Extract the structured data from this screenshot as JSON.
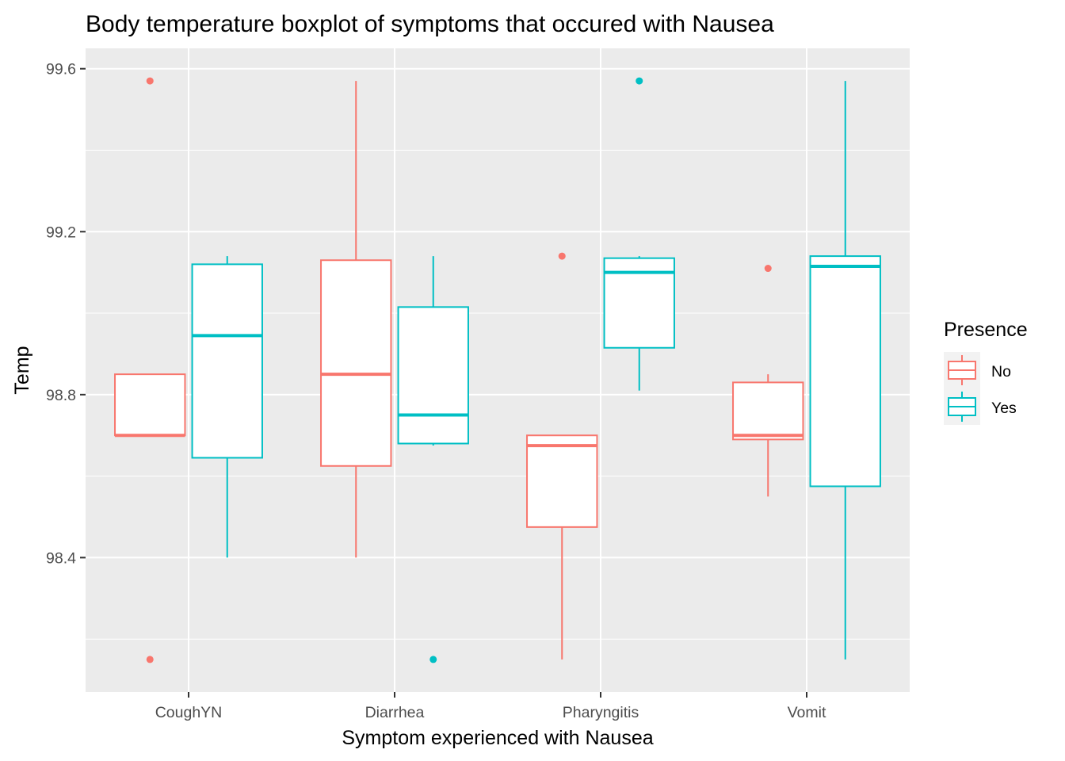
{
  "chart_data": {
    "type": "boxplot",
    "title": "Body temperature boxplot of symptoms that occured with Nausea",
    "xlabel": "Symptom experienced with Nausea",
    "ylabel": "Temp",
    "categories": [
      "CoughYN",
      "Diarrhea",
      "Pharyngitis",
      "Vomit"
    ],
    "ylim": [
      98.07,
      99.65
    ],
    "yticks": [
      98.4,
      98.8,
      99.2,
      99.6
    ],
    "ytick_labels": [
      "98.4",
      "98.8",
      "99.2",
      "99.6"
    ],
    "grid": true,
    "legend": {
      "title": "Presence",
      "position": "right",
      "entries": [
        {
          "label": "No",
          "color": "#f8766d"
        },
        {
          "label": "Yes",
          "color": "#00bfc4"
        }
      ]
    },
    "series": [
      {
        "name": "No",
        "color": "#f8766d",
        "boxes": [
          {
            "category": "CoughYN",
            "whisker_low": 98.7,
            "q1": 98.7,
            "median": 98.7,
            "q3": 98.85,
            "whisker_high": 98.85,
            "outliers": [
              99.57,
              98.15
            ]
          },
          {
            "category": "Diarrhea",
            "whisker_low": 98.4,
            "q1": 98.625,
            "median": 98.85,
            "q3": 99.13,
            "whisker_high": 99.57,
            "outliers": []
          },
          {
            "category": "Pharyngitis",
            "whisker_low": 98.15,
            "q1": 98.475,
            "median": 98.675,
            "q3": 98.7,
            "whisker_high": 98.7,
            "outliers": [
              99.14
            ]
          },
          {
            "category": "Vomit",
            "whisker_low": 98.55,
            "q1": 98.69,
            "median": 98.7,
            "q3": 98.83,
            "whisker_high": 98.85,
            "outliers": [
              99.11
            ]
          }
        ]
      },
      {
        "name": "Yes",
        "color": "#00bfc4",
        "boxes": [
          {
            "category": "CoughYN",
            "whisker_low": 98.4,
            "q1": 98.645,
            "median": 98.945,
            "q3": 99.12,
            "whisker_high": 99.14,
            "outliers": []
          },
          {
            "category": "Diarrhea",
            "whisker_low": 98.675,
            "q1": 98.68,
            "median": 98.75,
            "q3": 99.015,
            "whisker_high": 99.14,
            "outliers": [
              98.15
            ]
          },
          {
            "category": "Pharyngitis",
            "whisker_low": 98.81,
            "q1": 98.915,
            "median": 99.1,
            "q3": 99.135,
            "whisker_high": 99.14,
            "outliers": [
              99.57
            ]
          },
          {
            "category": "Vomit",
            "whisker_low": 98.15,
            "q1": 98.575,
            "median": 99.115,
            "q3": 99.14,
            "whisker_high": 99.57,
            "outliers": []
          }
        ]
      }
    ]
  }
}
